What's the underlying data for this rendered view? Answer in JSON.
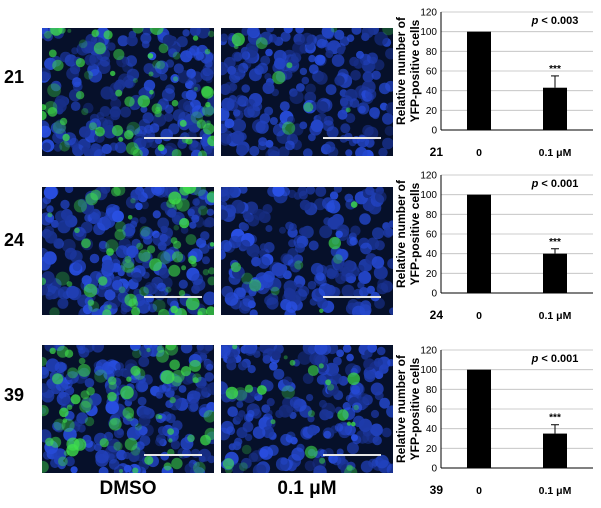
{
  "rows": [
    {
      "label": "21"
    },
    {
      "label": "24"
    },
    {
      "label": "39"
    }
  ],
  "columns": [
    {
      "label": "DMSO"
    },
    {
      "label": "0.1 μM"
    }
  ],
  "colors": {
    "background_nuclei": "#1f47b8",
    "yfp": "#3fe04a",
    "bar": "#000000",
    "scale_bar": "#e6e6e6"
  },
  "chart_data": [
    {
      "type": "bar",
      "corner_label": "21",
      "categories": [
        "0",
        "0.1  μM"
      ],
      "values": [
        100,
        43
      ],
      "errors": [
        0,
        12
      ],
      "ylabel_lines": [
        "Relative number of",
        "YFP-positive cells"
      ],
      "ylim": [
        0,
        120
      ],
      "yticks": [
        "0",
        "20",
        "40",
        "60",
        "80",
        "100",
        "120"
      ],
      "pvalue_prefix": "p",
      "pvalue_rest": " < 0.003",
      "significance": "***",
      "grid": true
    },
    {
      "type": "bar",
      "corner_label": "24",
      "categories": [
        "0",
        "0.1  μM"
      ],
      "values": [
        100,
        40
      ],
      "errors": [
        0,
        5
      ],
      "ylabel_lines": [
        "Relative number of",
        "YFP-positive cells"
      ],
      "ylim": [
        0,
        120
      ],
      "yticks": [
        "0",
        "20",
        "40",
        "60",
        "80",
        "100",
        "120"
      ],
      "pvalue_prefix": "p",
      "pvalue_rest": " < 0.001",
      "significance": "***",
      "grid": true
    },
    {
      "type": "bar",
      "corner_label": "39",
      "categories": [
        "0",
        "0.1  μM"
      ],
      "values": [
        100,
        35
      ],
      "errors": [
        0,
        9
      ],
      "ylabel_lines": [
        "Relative number of",
        "YFP-positive cells"
      ],
      "ylim": [
        0,
        120
      ],
      "yticks": [
        "0",
        "20",
        "40",
        "60",
        "80",
        "100",
        "120"
      ],
      "pvalue_prefix": "p",
      "pvalue_rest": " < 0.001",
      "significance": "***",
      "grid": true
    }
  ]
}
